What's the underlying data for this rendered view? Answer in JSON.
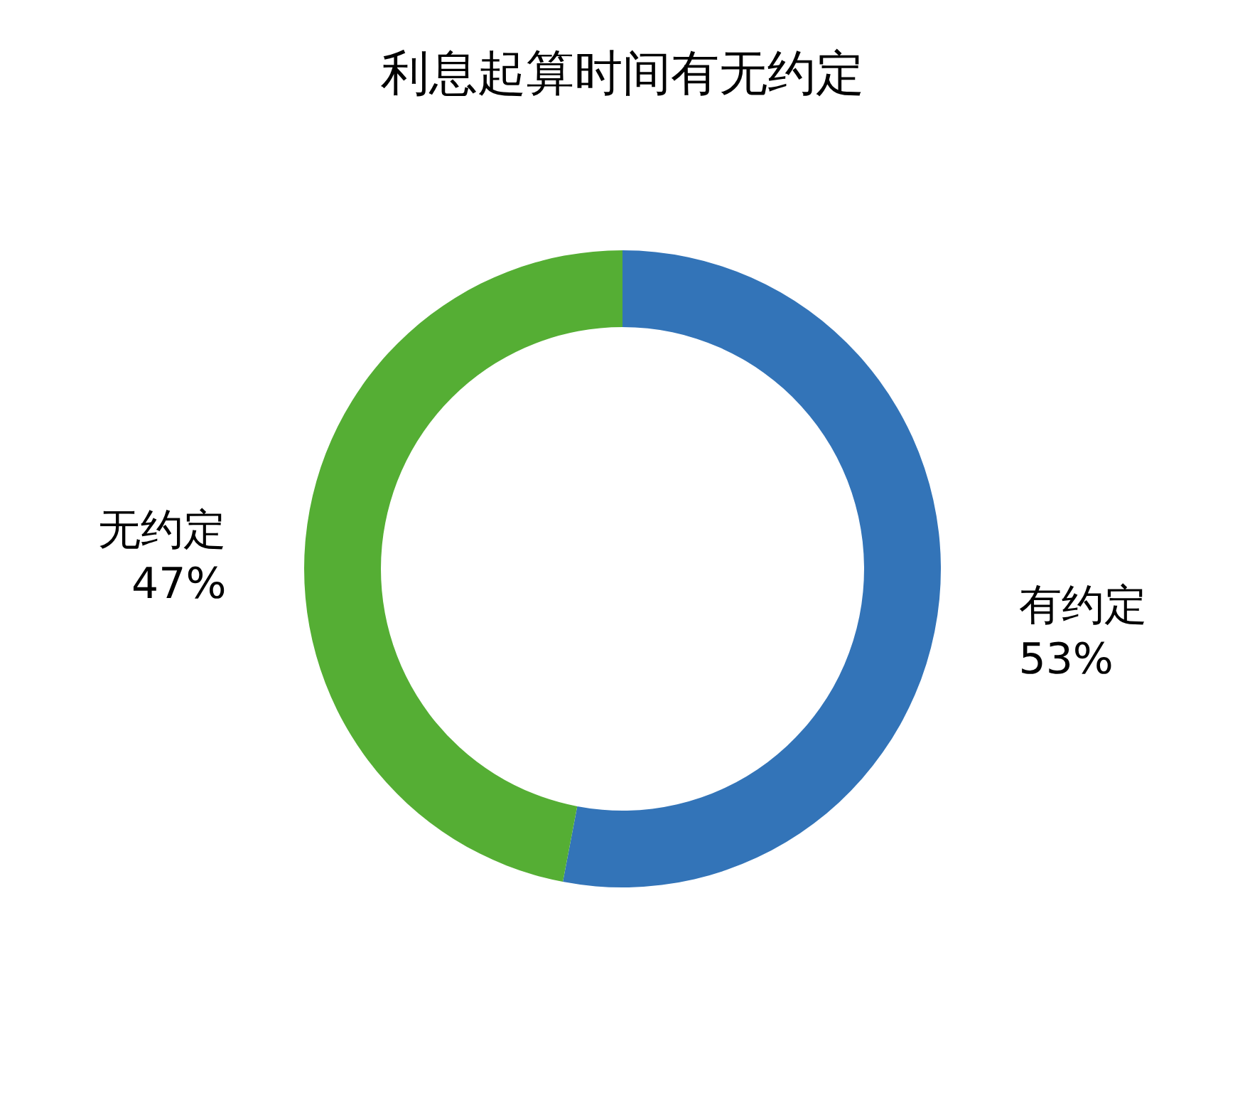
{
  "chart_data": {
    "type": "donut",
    "title": "利息起算时间有无约定",
    "categories": [
      "有约定",
      "无约定"
    ],
    "values": [
      53,
      47
    ],
    "colors": [
      "#3374b8",
      "#55ae34"
    ],
    "value_labels": [
      "53%",
      "47%"
    ]
  }
}
